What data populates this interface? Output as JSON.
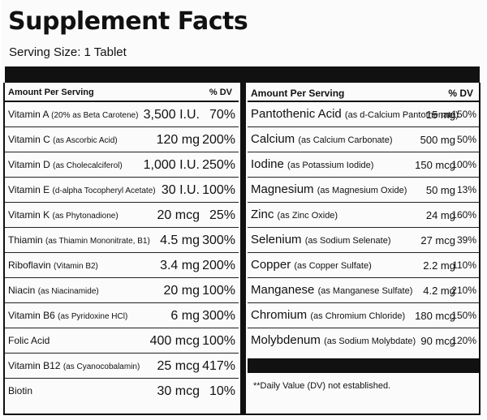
{
  "title": "Supplement Facts",
  "serving": "Serving Size: 1 Tablet",
  "headers": {
    "amount_per_serving": "Amount Per Serving",
    "dv": "% DV"
  },
  "left": [
    {
      "name": "Vitamin A",
      "sub": "(20% as Beta Carotene)",
      "amount": "3,500 I.U.",
      "dv": "70%"
    },
    {
      "name": "Vitamin C",
      "sub": "(as Ascorbic Acid)",
      "amount": "120 mg",
      "dv": "200%"
    },
    {
      "name": "Vitamin D",
      "sub": "(as Cholecalciferol)",
      "amount": "1,000 I.U.",
      "dv": "250%"
    },
    {
      "name": "Vitamin E",
      "sub": "(d-alpha Tocopheryl Acetate)",
      "amount": "30 I.U.",
      "dv": "100%"
    },
    {
      "name": "Vitamin K",
      "sub": "(as Phytonadione)",
      "amount": "20 mcg",
      "dv": "25%"
    },
    {
      "name": "Thiamin",
      "sub": "(as Thiamin Mononitrate, B1)",
      "amount": "4.5 mg",
      "dv": "300%"
    },
    {
      "name": "Riboflavin",
      "sub": "(Vitamin B2)",
      "amount": "3.4 mg",
      "dv": "200%"
    },
    {
      "name": "Niacin",
      "sub": "(as Niacinamide)",
      "amount": "20 mg",
      "dv": "100%"
    },
    {
      "name": "Vitamin B6",
      "sub": "(as Pyridoxine HCl)",
      "amount": "6 mg",
      "dv": "300%"
    },
    {
      "name": "Folic Acid",
      "sub": "",
      "amount": "400 mcg",
      "dv": "100%"
    },
    {
      "name": "Vitamin B12",
      "sub": "(as Cyanocobalamin)",
      "amount": "25 mcg",
      "dv": "417%"
    },
    {
      "name": "Biotin",
      "sub": "",
      "amount": "30 mcg",
      "dv": "10%"
    }
  ],
  "right": [
    {
      "name": "Pantothenic Acid",
      "sub": "(as d-Calcium Pantothenate)",
      "amount": "15 mg",
      "dv": "150%"
    },
    {
      "name": "Calcium",
      "sub": "(as Calcium Carbonate)",
      "amount": "500 mg",
      "dv": "50%"
    },
    {
      "name": "Iodine",
      "sub": "(as Potassium Iodide)",
      "amount": "150 mcg",
      "dv": "100%"
    },
    {
      "name": "Magnesium",
      "sub": "(as Magnesium Oxide)",
      "amount": "50 mg",
      "dv": "13%"
    },
    {
      "name": "Zinc",
      "sub": "(as Zinc Oxide)",
      "amount": "24 mg",
      "dv": "160%"
    },
    {
      "name": "Selenium",
      "sub": "(as Sodium Selenate)",
      "amount": "27 mcg",
      "dv": "39%"
    },
    {
      "name": "Copper",
      "sub": "(as Copper Sulfate)",
      "amount": "2.2 mg",
      "dv": "110%"
    },
    {
      "name": "Manganese",
      "sub": "(as Manganese Sulfate)",
      "amount": "4.2 mg",
      "dv": "210%"
    },
    {
      "name": "Chromium",
      "sub": "(as Chromium Chloride)",
      "amount": "180 mcg",
      "dv": "150%"
    },
    {
      "name": "Molybdenum",
      "sub": "(as Sodium Molybdate)",
      "amount": "90 mcg",
      "dv": "120%"
    }
  ],
  "footnote": "**Daily Value (DV) not established."
}
